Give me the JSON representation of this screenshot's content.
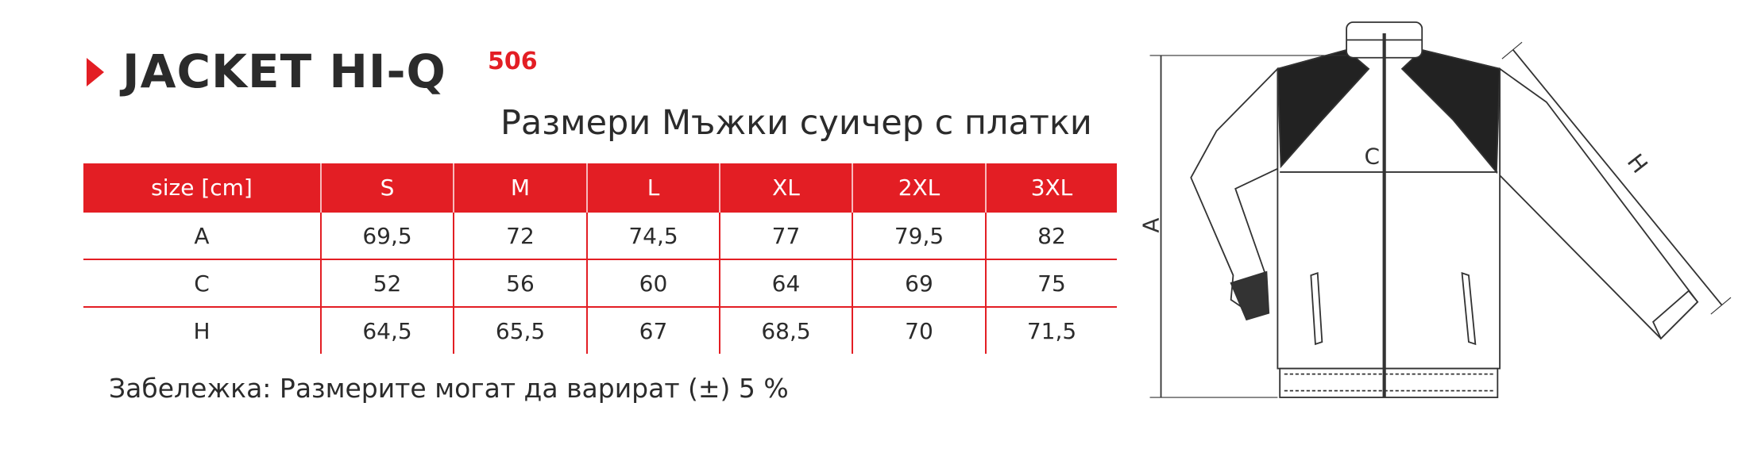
{
  "header": {
    "title": "JACKET HI-Q",
    "code": "506",
    "subtitle": "Размери Мъжки суичер с платки"
  },
  "table": {
    "columns": [
      "size [cm]",
      "S",
      "M",
      "L",
      "XL",
      "2XL",
      "3XL"
    ],
    "rows": [
      [
        "A",
        "69,5",
        "72",
        "74,5",
        "77",
        "79,5",
        "82"
      ],
      [
        "C",
        "52",
        "56",
        "60",
        "64",
        "69",
        "75"
      ],
      [
        "H",
        "64,5",
        "65,5",
        "67",
        "68,5",
        "70",
        "71,5"
      ]
    ]
  },
  "note": "Забележка: Размерите могат да варират (±) 5 %",
  "diagram": {
    "labels": [
      "A",
      "C",
      "H"
    ]
  }
}
